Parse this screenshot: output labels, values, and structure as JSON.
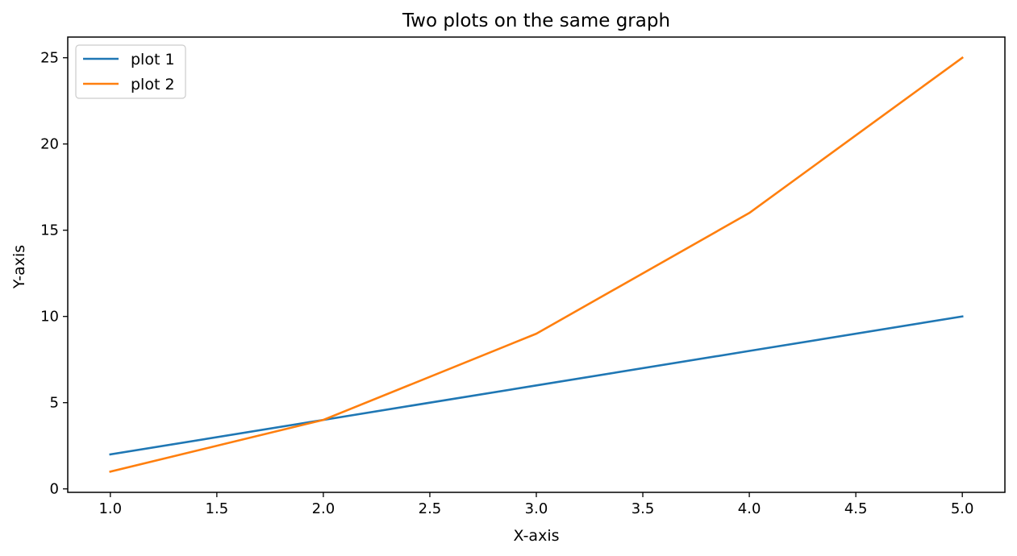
{
  "chart_data": {
    "type": "line",
    "title": "Two plots on the same graph",
    "xlabel": "X-axis",
    "ylabel": "Y-axis",
    "xlim": [
      0.8,
      5.2
    ],
    "ylim": [
      -0.2,
      26.2
    ],
    "x_ticks": [
      1.0,
      1.5,
      2.0,
      2.5,
      3.0,
      3.5,
      4.0,
      4.5,
      5.0
    ],
    "x_tick_labels": [
      "1.0",
      "1.5",
      "2.0",
      "2.5",
      "3.0",
      "3.5",
      "4.0",
      "4.5",
      "5.0"
    ],
    "y_ticks": [
      0,
      5,
      10,
      15,
      20,
      25
    ],
    "y_tick_labels": [
      "0",
      "5",
      "10",
      "15",
      "20",
      "25"
    ],
    "grid": false,
    "legend_position": "top-left",
    "series": [
      {
        "name": "plot 1",
        "color": "#1f77b4",
        "x": [
          1,
          2,
          3,
          4,
          5
        ],
        "y": [
          2,
          4,
          6,
          8,
          10
        ]
      },
      {
        "name": "plot 2",
        "color": "#ff7f0e",
        "x": [
          1,
          2,
          3,
          4,
          5
        ],
        "y": [
          1,
          4,
          9,
          16,
          25
        ]
      }
    ]
  }
}
